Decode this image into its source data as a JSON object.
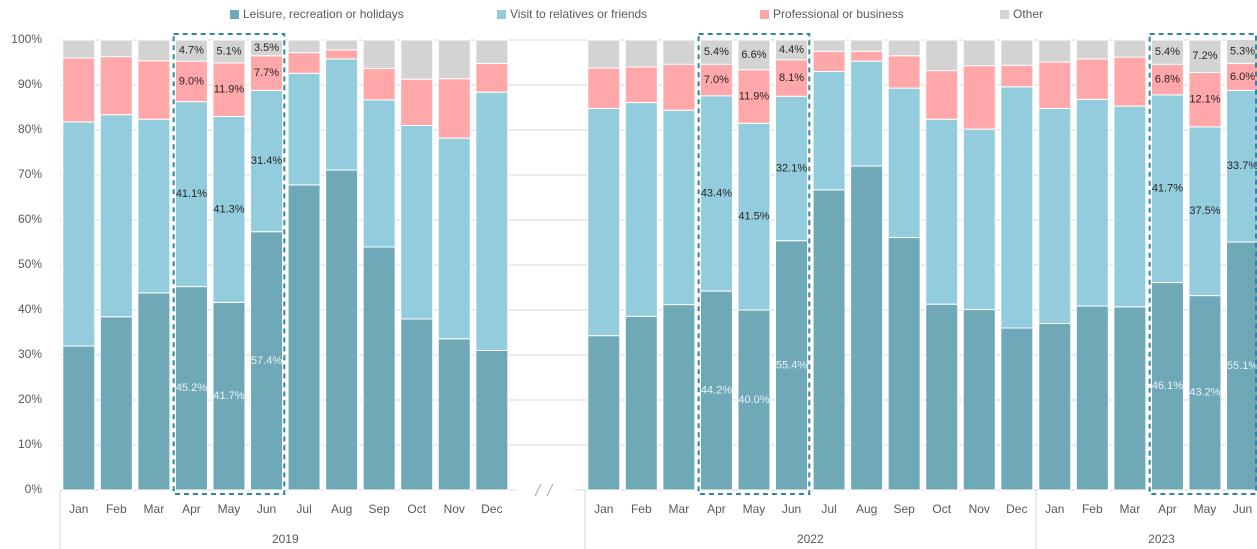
{
  "chart_data": {
    "type": "stacked_bar",
    "categories": [
      "Jan",
      "Feb",
      "Mar",
      "Apr",
      "May",
      "Jun",
      "Jul",
      "Aug",
      "Sep",
      "Oct",
      "Nov",
      "Dec",
      "Jan",
      "Feb",
      "Mar",
      "Apr",
      "May",
      "Jun",
      "Jul",
      "Aug",
      "Sep",
      "Oct",
      "Nov",
      "Dec",
      "Jan",
      "Feb",
      "Mar",
      "Apr",
      "May",
      "Jun"
    ],
    "groups": [
      {
        "label": "2019",
        "size": 12
      },
      {
        "label": "2022",
        "size": 12
      },
      {
        "label": "2023",
        "size": 6
      }
    ],
    "ylim": [
      0,
      100
    ],
    "yticks": [
      {
        "value": 0,
        "label": "0%"
      },
      {
        "value": 10,
        "label": "10%"
      },
      {
        "value": 20,
        "label": "20%"
      },
      {
        "value": 30,
        "label": "30%"
      },
      {
        "value": 40,
        "label": "40%"
      },
      {
        "value": 50,
        "label": "50%"
      },
      {
        "value": 60,
        "label": "60%"
      },
      {
        "value": 70,
        "label": "70%"
      },
      {
        "value": 80,
        "label": "80%"
      },
      {
        "value": 90,
        "label": "90%"
      },
      {
        "value": 100,
        "label": "100%"
      }
    ],
    "grid": true,
    "legend": "top",
    "series": [
      {
        "name": "Leisure, recreation or holidays",
        "color": "#6fa8b7",
        "label_color": "#e8f3f6",
        "values": [
          32,
          38.5,
          43.8,
          45.2,
          41.7,
          57.4,
          67.8,
          71.1,
          54,
          38,
          33.6,
          31,
          34.3,
          38.6,
          41.2,
          44.2,
          40.0,
          55.4,
          66.7,
          72,
          56.1,
          41.3,
          40.1,
          36,
          37,
          40.9,
          40.7,
          46.1,
          43.2,
          55.1
        ],
        "value_labels": [
          null,
          null,
          null,
          "45.2%",
          "41.7%",
          "57.4%",
          null,
          null,
          null,
          null,
          null,
          null,
          null,
          null,
          null,
          "44.2%",
          "40.0%",
          "55.4%",
          null,
          null,
          null,
          null,
          null,
          null,
          null,
          null,
          null,
          "46.1%",
          "43.2%",
          "55.1%"
        ]
      },
      {
        "name": "Visit to relatives or friends",
        "color": "#93cddd",
        "label_color": "#262626",
        "values": [
          49.8,
          44.9,
          38.6,
          41.1,
          41.3,
          31.4,
          24.8,
          24.7,
          32.7,
          43,
          44.6,
          57.4,
          50.5,
          47.5,
          43.2,
          43.4,
          41.5,
          32.1,
          26.3,
          23.3,
          33.2,
          41.1,
          40.1,
          53.6,
          47.8,
          45.9,
          44.6,
          41.7,
          37.5,
          33.7
        ],
        "value_labels": [
          null,
          null,
          null,
          "41.1%",
          "41.3%",
          "31.4%",
          null,
          null,
          null,
          null,
          null,
          null,
          null,
          null,
          null,
          "43.4%",
          "41.5%",
          "32.1%",
          null,
          null,
          null,
          null,
          null,
          null,
          null,
          null,
          null,
          "41.7%",
          "37.5%",
          "33.7%"
        ]
      },
      {
        "name": "Professional or business",
        "color": "#ffa7a9",
        "label_color": "#262626",
        "values": [
          14.2,
          12.9,
          13.0,
          9.0,
          11.9,
          7.7,
          4.6,
          2.0,
          7.0,
          10.3,
          13.2,
          6.4,
          9.0,
          7.9,
          10.2,
          7.0,
          11.9,
          8.1,
          4.5,
          2.2,
          7.2,
          10.8,
          14.1,
          4.8,
          10.3,
          9.0,
          10.9,
          6.8,
          12.1,
          6.0
        ],
        "value_labels": [
          null,
          null,
          null,
          "9.0%",
          "11.9%",
          "7.7%",
          null,
          null,
          null,
          null,
          null,
          null,
          null,
          null,
          null,
          "7.0%",
          "11.9%",
          "8.1%",
          null,
          null,
          null,
          null,
          null,
          null,
          null,
          null,
          null,
          "6.8%",
          "12.1%",
          "6.0%"
        ]
      },
      {
        "name": "Other",
        "color": "#d3d3d3",
        "label_color": "#262626",
        "values": [
          4,
          3.7,
          4.6,
          4.7,
          5.1,
          3.5,
          2.8,
          2.2,
          6.3,
          8.7,
          8.6,
          5.2,
          6.2,
          6.0,
          5.4,
          5.4,
          6.6,
          4.4,
          2.5,
          2.5,
          3.5,
          6.8,
          5.7,
          5.6,
          4.9,
          4.2,
          3.8,
          5.4,
          7.2,
          5.3
        ],
        "value_labels": [
          null,
          null,
          null,
          "4.7%",
          "5.1%",
          "3.5%",
          null,
          null,
          null,
          null,
          null,
          null,
          null,
          null,
          null,
          "5.4%",
          "6.6%",
          "4.4%",
          null,
          null,
          null,
          null,
          null,
          null,
          null,
          null,
          null,
          "5.4%",
          "7.2%",
          "5.3%"
        ]
      }
    ]
  }
}
